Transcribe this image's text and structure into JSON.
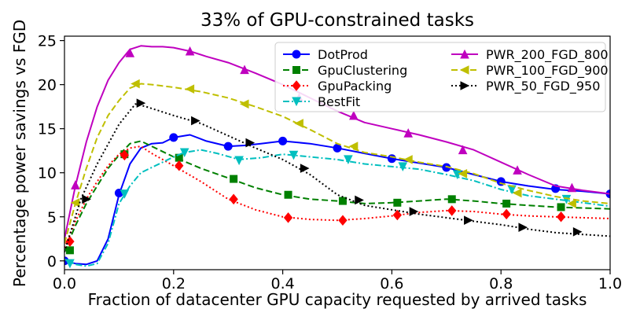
{
  "chart_data": {
    "type": "line",
    "title": "33% of GPU-constrained tasks",
    "xlabel": "Fraction of datacenter GPU capacity requested by arrived tasks",
    "ylabel": "Percentage power savings vs FGD",
    "xlim": [
      0.0,
      1.0
    ],
    "ylim": [
      -1.0,
      25.5
    ],
    "xticks": [
      0.0,
      0.2,
      0.4,
      0.6,
      0.8,
      1.0
    ],
    "xtick_labels": [
      "0.0",
      "0.2",
      "0.4",
      "0.6",
      "0.8",
      "1.0"
    ],
    "yticks": [
      0,
      5,
      10,
      15,
      20,
      25
    ],
    "ytick_labels": [
      "0",
      "5",
      "10",
      "15",
      "20",
      "25"
    ],
    "grid": false,
    "legend_position": "top-right",
    "series": [
      {
        "name": "DotProd",
        "color": "#0000ff",
        "dash": "solid",
        "marker": "circle",
        "x": [
          0.0,
          0.02,
          0.04,
          0.06,
          0.08,
          0.1,
          0.12,
          0.14,
          0.16,
          0.18,
          0.2,
          0.23,
          0.26,
          0.3,
          0.33,
          0.36,
          0.4,
          0.45,
          0.5,
          0.55,
          0.6,
          0.65,
          0.7,
          0.75,
          0.8,
          0.85,
          0.9,
          0.95,
          1.0
        ],
        "y": [
          0.0,
          -0.3,
          -0.4,
          0.0,
          2.5,
          7.5,
          11.0,
          12.8,
          13.3,
          13.4,
          14.0,
          14.3,
          13.6,
          13.0,
          13.1,
          13.3,
          13.6,
          13.3,
          12.8,
          12.2,
          11.6,
          11.1,
          10.6,
          9.8,
          9.0,
          8.5,
          8.1,
          7.9,
          7.6
        ],
        "mx": [
          0.0,
          0.1,
          0.2,
          0.3,
          0.4,
          0.5,
          0.6,
          0.7,
          0.8,
          0.9,
          1.0
        ],
        "my": [
          0.0,
          7.7,
          14.0,
          13.0,
          13.6,
          12.8,
          11.6,
          10.6,
          9.0,
          8.2,
          7.6
        ]
      },
      {
        "name": "GpuClustering",
        "color": "#008000",
        "dash": "dashed",
        "marker": "square",
        "x": [
          0.0,
          0.02,
          0.04,
          0.06,
          0.08,
          0.1,
          0.12,
          0.14,
          0.16,
          0.18,
          0.2,
          0.25,
          0.3,
          0.35,
          0.4,
          0.45,
          0.5,
          0.55,
          0.6,
          0.65,
          0.7,
          0.75,
          0.8,
          0.85,
          0.9,
          0.95,
          1.0
        ],
        "y": [
          1.0,
          4.0,
          6.5,
          8.5,
          10.5,
          12.0,
          13.3,
          13.6,
          13.0,
          12.4,
          11.8,
          10.5,
          9.4,
          8.3,
          7.5,
          7.0,
          6.8,
          6.5,
          6.6,
          6.8,
          7.0,
          6.8,
          6.5,
          6.3,
          6.1,
          6.0,
          5.9
        ],
        "mx": [
          0.01,
          0.11,
          0.21,
          0.31,
          0.41,
          0.51,
          0.61,
          0.71,
          0.81,
          0.91
        ],
        "my": [
          1.2,
          12.1,
          11.7,
          9.3,
          7.5,
          6.8,
          6.6,
          7.0,
          6.5,
          6.1
        ]
      },
      {
        "name": "GpuPacking",
        "color": "#ff0000",
        "dash": "dotted",
        "marker": "diamond",
        "x": [
          0.0,
          0.02,
          0.04,
          0.06,
          0.08,
          0.1,
          0.12,
          0.14,
          0.16,
          0.18,
          0.2,
          0.25,
          0.3,
          0.35,
          0.4,
          0.45,
          0.5,
          0.55,
          0.6,
          0.65,
          0.7,
          0.75,
          0.8,
          0.85,
          0.9,
          0.95,
          1.0
        ],
        "y": [
          1.5,
          4.5,
          7.0,
          9.0,
          10.8,
          12.1,
          12.8,
          13.0,
          12.2,
          11.5,
          10.8,
          9.0,
          7.0,
          5.8,
          5.0,
          4.7,
          4.6,
          4.8,
          5.1,
          5.5,
          5.7,
          5.6,
          5.3,
          5.1,
          5.0,
          4.9,
          4.8
        ],
        "mx": [
          0.01,
          0.11,
          0.21,
          0.31,
          0.41,
          0.51,
          0.61,
          0.71,
          0.81,
          0.91
        ],
        "my": [
          2.2,
          12.0,
          10.8,
          7.0,
          4.9,
          4.6,
          5.2,
          5.7,
          5.3,
          5.0
        ]
      },
      {
        "name": "BestFit",
        "color": "#00bfbf",
        "dash": "dashdot",
        "marker": "triangle-down",
        "x": [
          0.0,
          0.02,
          0.04,
          0.06,
          0.08,
          0.1,
          0.12,
          0.14,
          0.16,
          0.18,
          0.2,
          0.22,
          0.25,
          0.28,
          0.32,
          0.36,
          0.4,
          0.45,
          0.5,
          0.55,
          0.6,
          0.65,
          0.7,
          0.75,
          0.8,
          0.85,
          0.9,
          0.95,
          1.0
        ],
        "y": [
          0.2,
          -0.4,
          -0.6,
          -0.3,
          2.0,
          6.5,
          8.5,
          10.0,
          10.6,
          11.2,
          11.8,
          12.3,
          12.6,
          12.2,
          11.5,
          11.7,
          12.1,
          11.8,
          11.5,
          11.0,
          10.7,
          10.4,
          9.8,
          9.1,
          8.1,
          7.4,
          7.0,
          6.6,
          6.2
        ],
        "mx": [
          0.01,
          0.11,
          0.22,
          0.32,
          0.42,
          0.52,
          0.62,
          0.72,
          0.82,
          0.92
        ],
        "my": [
          -0.3,
          7.6,
          12.3,
          11.4,
          12.0,
          11.5,
          10.7,
          9.8,
          8.1,
          7.0
        ]
      },
      {
        "name": "PWR_200_FGD_800",
        "color": "#bf00bf",
        "dash": "solid",
        "marker": "triangle-up",
        "x": [
          0.0,
          0.02,
          0.04,
          0.06,
          0.08,
          0.1,
          0.12,
          0.14,
          0.16,
          0.18,
          0.2,
          0.23,
          0.26,
          0.3,
          0.35,
          0.4,
          0.45,
          0.5,
          0.55,
          0.6,
          0.65,
          0.7,
          0.75,
          0.8,
          0.85,
          0.9,
          0.95,
          1.0
        ],
        "y": [
          2.5,
          8.5,
          13.5,
          17.5,
          20.5,
          22.5,
          24.0,
          24.4,
          24.3,
          24.3,
          24.2,
          23.8,
          23.2,
          22.5,
          21.3,
          20.0,
          18.5,
          17.0,
          15.7,
          15.0,
          14.3,
          13.5,
          12.6,
          11.2,
          9.8,
          8.5,
          8.0,
          7.6
        ],
        "mx": [
          0.02,
          0.12,
          0.23,
          0.33,
          0.43,
          0.53,
          0.63,
          0.73,
          0.83,
          0.93
        ],
        "my": [
          8.6,
          23.6,
          23.8,
          21.7,
          18.5,
          16.5,
          14.5,
          12.6,
          10.3,
          8.3
        ]
      },
      {
        "name": "PWR_100_FGD_900",
        "color": "#bfbf00",
        "dash": "dashed",
        "marker": "triangle-left",
        "x": [
          0.0,
          0.02,
          0.04,
          0.06,
          0.08,
          0.1,
          0.12,
          0.14,
          0.16,
          0.2,
          0.25,
          0.3,
          0.35,
          0.4,
          0.45,
          0.5,
          0.55,
          0.6,
          0.65,
          0.7,
          0.75,
          0.8,
          0.85,
          0.9,
          0.95,
          1.0
        ],
        "y": [
          2.0,
          6.5,
          10.5,
          14.0,
          16.5,
          18.2,
          19.6,
          20.1,
          20.0,
          19.7,
          19.2,
          18.5,
          17.5,
          16.4,
          14.9,
          13.3,
          12.3,
          11.8,
          11.2,
          10.7,
          9.9,
          8.8,
          8.0,
          7.3,
          6.8,
          6.5
        ],
        "mx": [
          0.02,
          0.13,
          0.23,
          0.33,
          0.43,
          0.53,
          0.63,
          0.73,
          0.83,
          0.93
        ],
        "my": [
          6.6,
          20.1,
          19.5,
          17.8,
          15.6,
          13.0,
          11.5,
          9.9,
          7.7,
          6.5
        ]
      },
      {
        "name": "PWR_50_FGD_950",
        "color": "#000000",
        "dash": "dotted",
        "marker": "triangle-right",
        "x": [
          0.0,
          0.03,
          0.06,
          0.1,
          0.13,
          0.15,
          0.2,
          0.25,
          0.3,
          0.35,
          0.4,
          0.45,
          0.5,
          0.55,
          0.6,
          0.65,
          0.7,
          0.75,
          0.8,
          0.85,
          0.9,
          0.95,
          1.0
        ],
        "y": [
          1.0,
          7.0,
          11.0,
          15.5,
          17.8,
          17.5,
          16.5,
          15.6,
          14.2,
          12.8,
          11.5,
          9.8,
          7.5,
          6.3,
          5.8,
          5.3,
          4.9,
          4.5,
          4.1,
          3.6,
          3.2,
          3.0,
          2.8
        ],
        "mx": [
          0.04,
          0.14,
          0.24,
          0.34,
          0.44,
          0.54,
          0.64,
          0.74,
          0.84,
          0.94
        ],
        "my": [
          7.0,
          17.9,
          15.9,
          13.4,
          10.5,
          6.9,
          5.6,
          4.6,
          3.8,
          3.3
        ]
      }
    ]
  }
}
